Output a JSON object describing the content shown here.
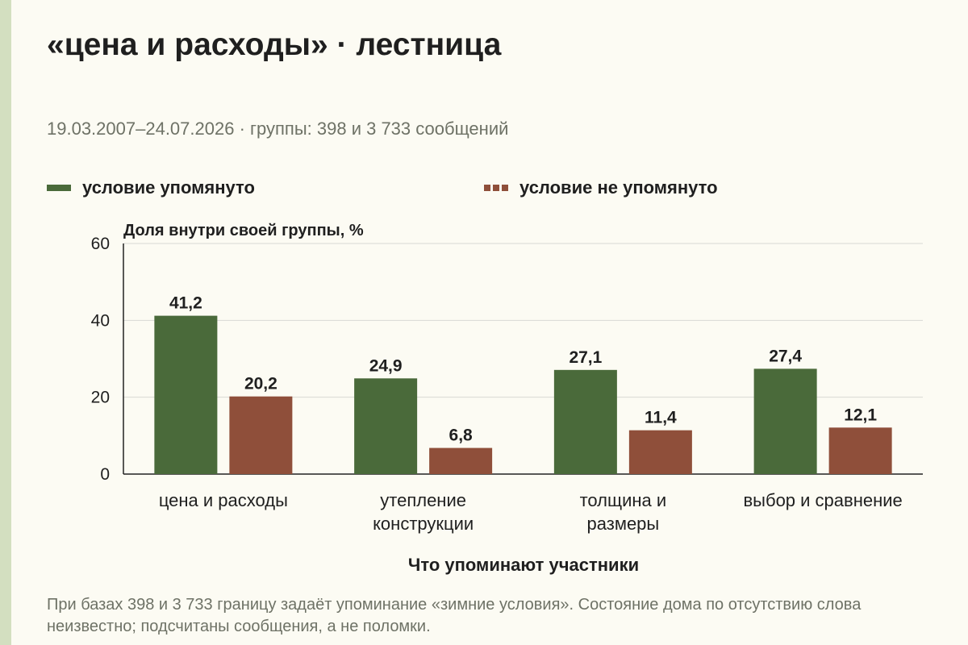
{
  "title": "«цена и расходы» · лестница",
  "subtitle": "19.03.2007–24.07.2026 · группы: 398 и 3 733 сообщений",
  "footnote": "При базах 398 и 3 733 границу задаёт упоминание «зимние условия». Состояние дома по отсутствию слова неизвестно; подсчитаны сообщения, а не поломки.",
  "colors": {
    "mentioned": "#4a6a3a",
    "not_mentioned": "#8f4f3a"
  },
  "chart_data": {
    "type": "bar",
    "ylabel": "Доля внутри своей группы, %",
    "xlabel": "Что упоминают участники",
    "ylim": [
      0,
      60
    ],
    "yticks": [
      0,
      20,
      40,
      60
    ],
    "grid": true,
    "legend_position": "top",
    "categories": [
      [
        "цена и расходы"
      ],
      [
        "утепление",
        "конструкции"
      ],
      [
        "толщина и",
        "размеры"
      ],
      [
        "выбор и сравнение"
      ]
    ],
    "series": [
      {
        "name": "условие упомянуто",
        "values": [
          41.2,
          24.9,
          27.1,
          27.4
        ],
        "labels": [
          "41,2",
          "24,9",
          "27,1",
          "27,4"
        ]
      },
      {
        "name": "условие не упомянуто",
        "values": [
          20.2,
          6.8,
          11.4,
          12.1
        ],
        "labels": [
          "20,2",
          "6,8",
          "11,4",
          "12,1"
        ]
      }
    ]
  }
}
